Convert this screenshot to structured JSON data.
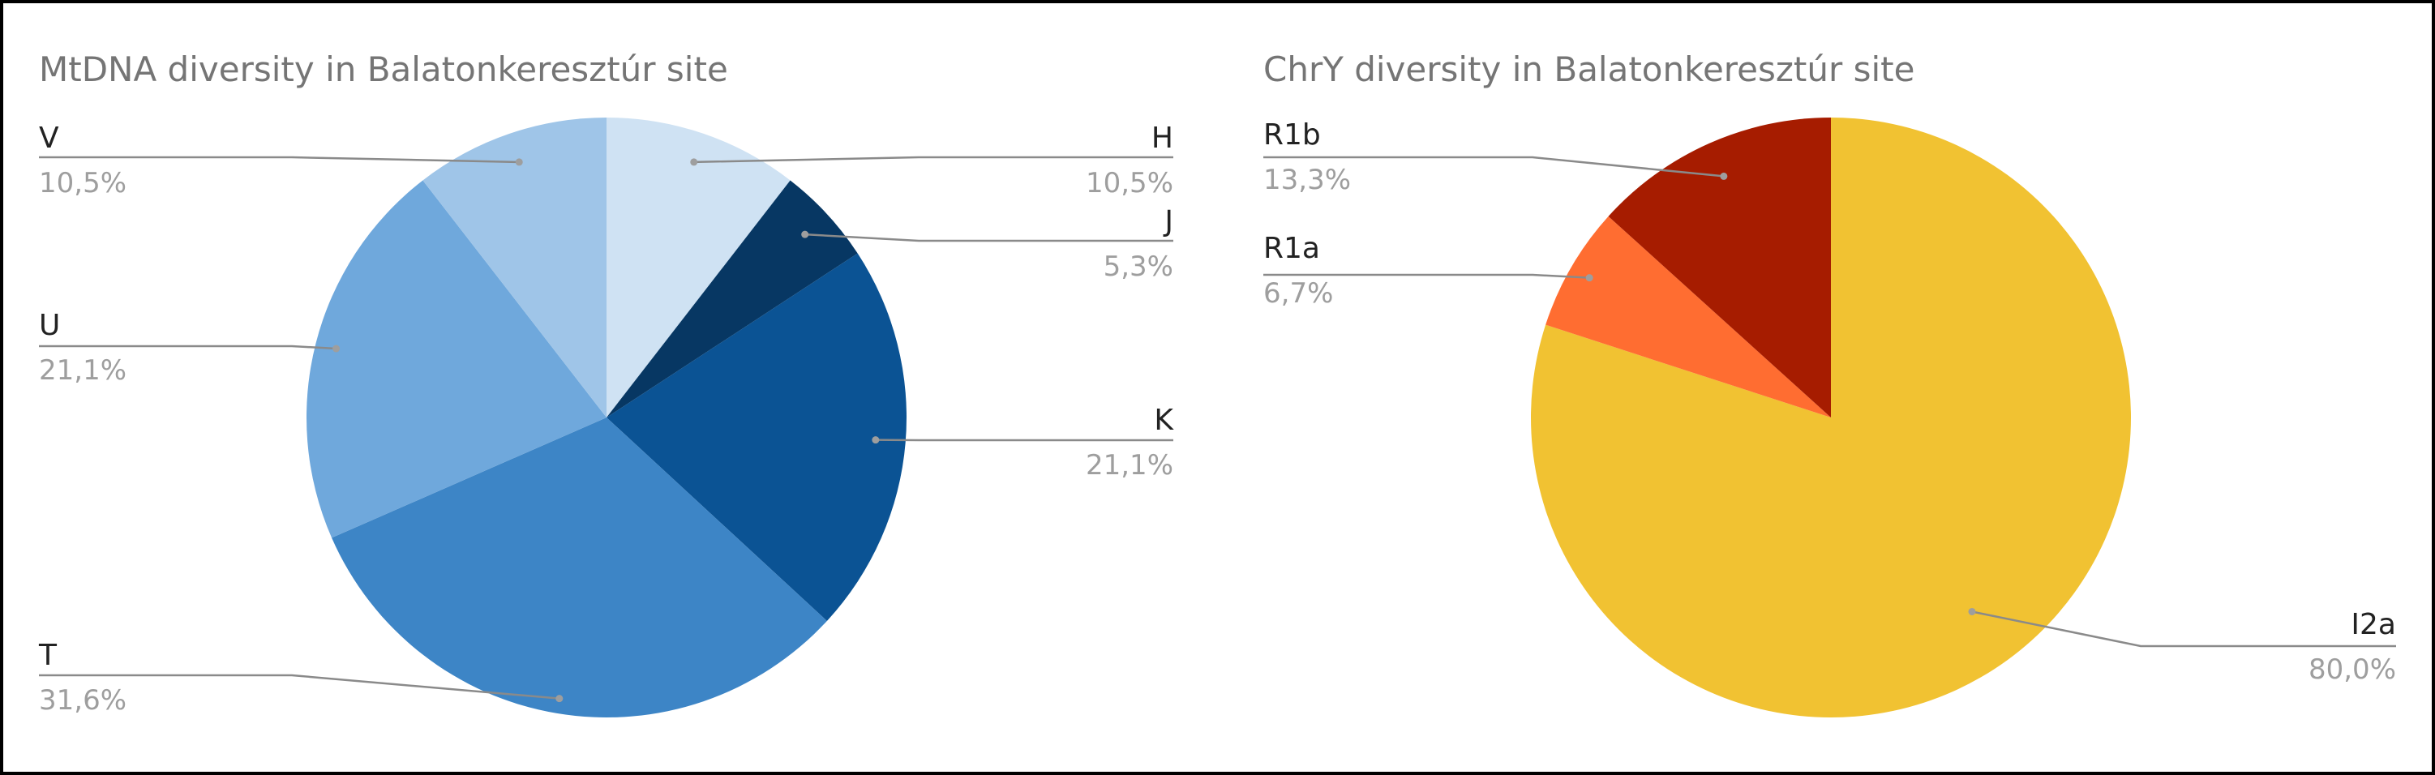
{
  "chart_data": [
    {
      "type": "pie",
      "title": "MtDNA diversity in Balatonkeresztúr site",
      "slices": [
        {
          "label": "H",
          "value": 10.5,
          "display": "10,5%",
          "color": "#cfe2f3"
        },
        {
          "label": "J",
          "value": 5.3,
          "display": "5,3%",
          "color": "#073763"
        },
        {
          "label": "K",
          "value": 21.1,
          "display": "21,1%",
          "color": "#0b5394"
        },
        {
          "label": "T",
          "value": 31.6,
          "display": "31,6%",
          "color": "#3d85c6"
        },
        {
          "label": "U",
          "value": 21.1,
          "display": "21,1%",
          "color": "#6fa8dc"
        },
        {
          "label": "V",
          "value": 10.5,
          "display": "10,5%",
          "color": "#9fc5e8"
        }
      ]
    },
    {
      "type": "pie",
      "title": "ChrY diversity in Balatonkeresztúr site",
      "slices": [
        {
          "label": "I2a",
          "value": 80.0,
          "display": "80,0%",
          "color": "#f1c232"
        },
        {
          "label": "R1a",
          "value": 6.7,
          "display": "6,7%",
          "color": "#ff6d31"
        },
        {
          "label": "R1b",
          "value": 13.3,
          "display": "13,3%",
          "color": "#a61c00"
        }
      ]
    }
  ]
}
